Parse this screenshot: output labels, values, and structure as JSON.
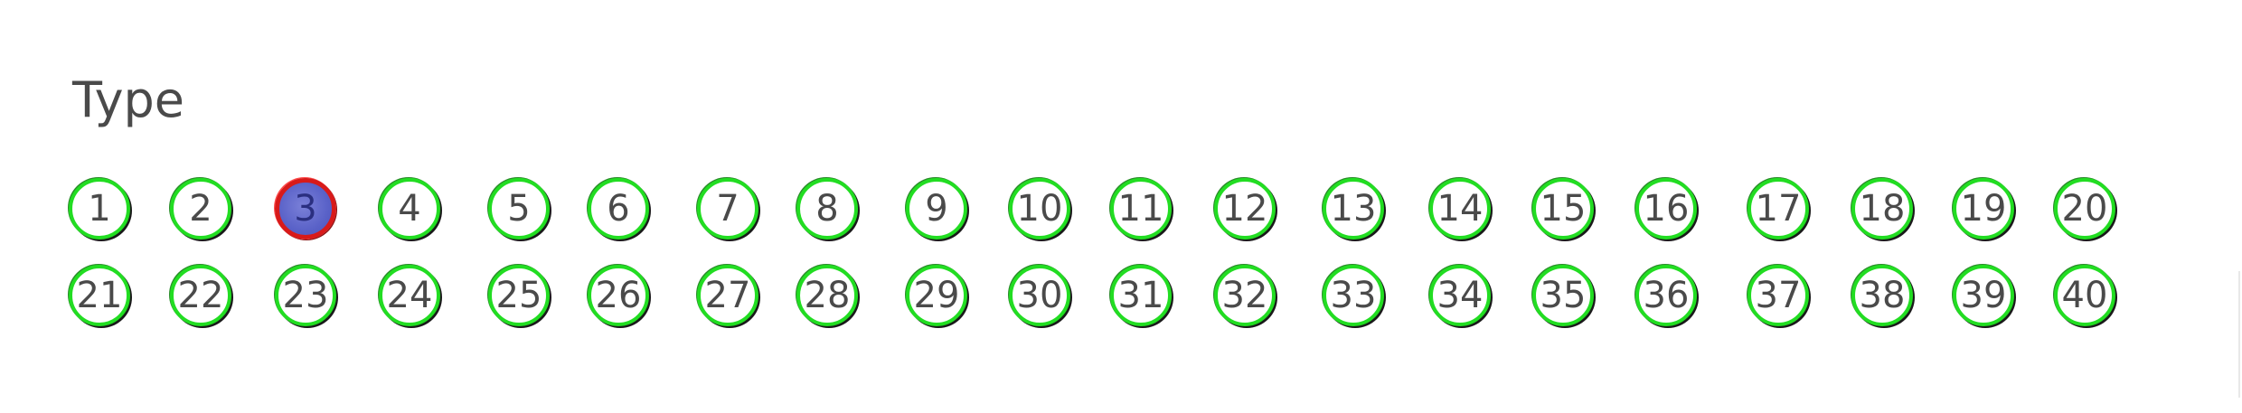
{
  "title": "Type",
  "selected_label": "3",
  "colors": {
    "ring": "#22dd22",
    "selected_ring": "#d81a1a",
    "selected_fill": "#5a62c8",
    "text": "#4a4a4a"
  },
  "rows": [
    [
      "1",
      "2",
      "3",
      "4",
      "5",
      "6",
      "7",
      "8",
      "9",
      "10",
      "11",
      "12",
      "13",
      "14",
      "15",
      "16",
      "17",
      "18",
      "19",
      "20"
    ],
    [
      "21",
      "22",
      "23",
      "24",
      "25",
      "26",
      "27",
      "28",
      "29",
      "30",
      "31",
      "32",
      "33",
      "34",
      "35",
      "36",
      "37",
      "38",
      "39",
      "40"
    ]
  ]
}
